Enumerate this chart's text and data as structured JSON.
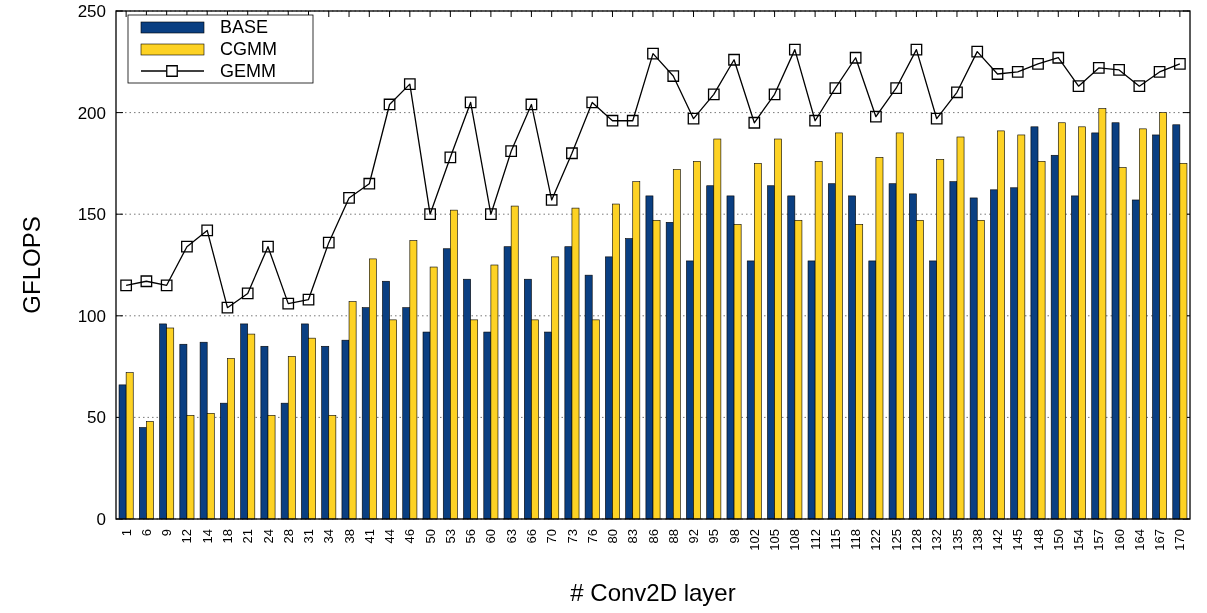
{
  "chart_data": {
    "type": "bar",
    "xlabel": "# Conv2D layer",
    "ylabel": "GFLOPS",
    "categories": [
      "1",
      "6",
      "9",
      "12",
      "14",
      "18",
      "21",
      "24",
      "28",
      "31",
      "34",
      "38",
      "41",
      "44",
      "46",
      "50",
      "53",
      "56",
      "60",
      "63",
      "66",
      "70",
      "73",
      "76",
      "80",
      "83",
      "86",
      "88",
      "92",
      "95",
      "98",
      "102",
      "105",
      "108",
      "112",
      "115",
      "118",
      "122",
      "125",
      "128",
      "132",
      "135",
      "138",
      "142",
      "145",
      "148",
      "150",
      "154",
      "157",
      "160",
      "164",
      "167",
      "170"
    ],
    "series": [
      {
        "name": "BASE",
        "color": "#0a3f82",
        "values": [
          66,
          45,
          96,
          86,
          87,
          57,
          96,
          85,
          57,
          96,
          85,
          88,
          104,
          117,
          104,
          92,
          133,
          118,
          92,
          134,
          118,
          92,
          134,
          120,
          129,
          138,
          159,
          146,
          127,
          164,
          159,
          127,
          164,
          159,
          127,
          165,
          159,
          127,
          165,
          160,
          127,
          166,
          158,
          162,
          163,
          193,
          179,
          159,
          190,
          195,
          157,
          189,
          194
        ]
      },
      {
        "name": "CGMM",
        "color": "#fdd224",
        "values": [
          72,
          48,
          94,
          51,
          52,
          79,
          91,
          51,
          80,
          89,
          51,
          107,
          128,
          98,
          137,
          124,
          152,
          98,
          125,
          154,
          98,
          129,
          153,
          98,
          155,
          166,
          147,
          172,
          176,
          187,
          145,
          175,
          187,
          147,
          176,
          190,
          145,
          178,
          190,
          147,
          177,
          188,
          147,
          191,
          189,
          176,
          195,
          193,
          202,
          173,
          192,
          200,
          175
        ]
      },
      {
        "name": "GEMM",
        "type": "line",
        "color": "#000000",
        "marker": "square",
        "line_style": "solid",
        "values": [
          115,
          117,
          115,
          134,
          142,
          104,
          111,
          134,
          106,
          108,
          136,
          158,
          165,
          204,
          214,
          150,
          178,
          205,
          150,
          181,
          204,
          157,
          180,
          205,
          196,
          196,
          229,
          218,
          197,
          209,
          226,
          195,
          209,
          231,
          196,
          212,
          227,
          198,
          212,
          231,
          197,
          210,
          230,
          219,
          220,
          224,
          227,
          213,
          222,
          221,
          213,
          220,
          224
        ]
      }
    ],
    "ylim": [
      0,
      250
    ],
    "yticks": [
      0,
      50,
      100,
      150,
      200,
      250
    ],
    "grid": "y",
    "legend": "top left"
  }
}
